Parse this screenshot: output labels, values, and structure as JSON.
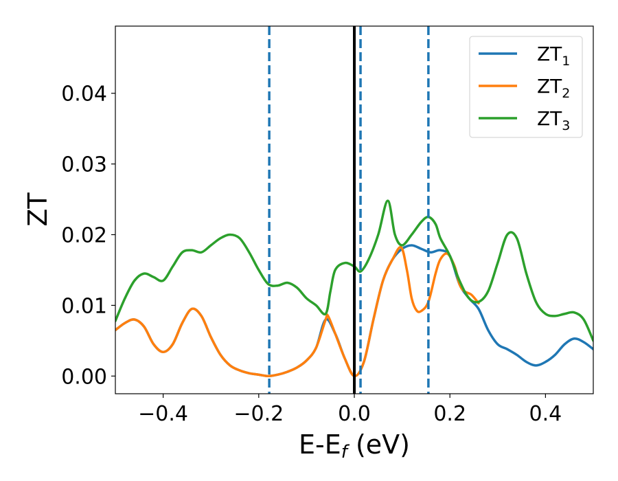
{
  "chart_data": {
    "type": "line",
    "xlabel": "E-E",
    "xlabel_sub": "f",
    "xlabel_unit": " (eV)",
    "ylabel": "ZT",
    "xlim": [
      -0.5,
      0.5
    ],
    "ylim": [
      -0.0025,
      0.0495
    ],
    "xticks": [
      -0.4,
      -0.2,
      0.0,
      0.2,
      0.4
    ],
    "xtick_labels": [
      "−0.4",
      "−0.2",
      "0.0",
      "0.2",
      "0.4"
    ],
    "yticks": [
      0.0,
      0.01,
      0.02,
      0.03,
      0.04
    ],
    "ytick_labels": [
      "0.00",
      "0.01",
      "0.02",
      "0.03",
      "0.04"
    ],
    "grid": false,
    "legend_position": "top-right",
    "vertical_lines": [
      {
        "x": 0.0,
        "color": "#000000",
        "style": "solid"
      },
      {
        "x": -0.178,
        "color": "#1f77b4",
        "style": "dashed"
      },
      {
        "x": 0.013,
        "color": "#1f77b4",
        "style": "dashed"
      },
      {
        "x": 0.155,
        "color": "#1f77b4",
        "style": "dashed"
      }
    ],
    "series": [
      {
        "name": "ZT",
        "sub": "1",
        "color": "#1f77b4",
        "x": [
          -0.5,
          -0.48,
          -0.46,
          -0.44,
          -0.42,
          -0.4,
          -0.38,
          -0.36,
          -0.34,
          -0.32,
          -0.3,
          -0.28,
          -0.26,
          -0.24,
          -0.22,
          -0.2,
          -0.18,
          -0.16,
          -0.14,
          -0.12,
          -0.1,
          -0.08,
          -0.06,
          -0.04,
          -0.02,
          0.0,
          0.02,
          0.04,
          0.06,
          0.08,
          0.1,
          0.12,
          0.14,
          0.16,
          0.18,
          0.2,
          0.22,
          0.24,
          0.26,
          0.28,
          0.3,
          0.32,
          0.34,
          0.36,
          0.38,
          0.4,
          0.42,
          0.44,
          0.46,
          0.48,
          0.5
        ],
        "y": [
          0.0065,
          0.0075,
          0.008,
          0.007,
          0.0045,
          0.0034,
          0.0045,
          0.0075,
          0.0095,
          0.0085,
          0.0055,
          0.003,
          0.0015,
          0.0008,
          0.0004,
          0.0002,
          0.0,
          0.0002,
          0.0006,
          0.0012,
          0.0022,
          0.004,
          0.008,
          0.006,
          0.0025,
          0.0,
          0.002,
          0.008,
          0.0135,
          0.0165,
          0.018,
          0.0185,
          0.018,
          0.0175,
          0.0178,
          0.017,
          0.013,
          0.011,
          0.0095,
          0.0065,
          0.0045,
          0.0038,
          0.003,
          0.002,
          0.0015,
          0.002,
          0.003,
          0.0045,
          0.0053,
          0.0048,
          0.0038
        ]
      },
      {
        "name": "ZT",
        "sub": "2",
        "color": "#ff7f0e",
        "x": [
          -0.5,
          -0.48,
          -0.46,
          -0.44,
          -0.42,
          -0.4,
          -0.38,
          -0.36,
          -0.34,
          -0.32,
          -0.3,
          -0.28,
          -0.26,
          -0.24,
          -0.22,
          -0.2,
          -0.18,
          -0.16,
          -0.14,
          -0.12,
          -0.1,
          -0.08,
          -0.06,
          -0.055,
          -0.04,
          -0.02,
          0.0,
          0.02,
          0.04,
          0.06,
          0.08,
          0.098,
          0.11,
          0.12,
          0.13,
          0.14,
          0.155,
          0.17,
          0.18,
          0.195,
          0.21,
          0.22,
          0.23,
          0.245,
          0.26
        ],
        "y": [
          0.0065,
          0.0075,
          0.008,
          0.007,
          0.0045,
          0.0034,
          0.0045,
          0.0075,
          0.0095,
          0.0085,
          0.0055,
          0.003,
          0.0015,
          0.0008,
          0.0004,
          0.0002,
          0.0,
          0.0002,
          0.0006,
          0.0012,
          0.0022,
          0.004,
          0.008,
          0.0085,
          0.006,
          0.0025,
          0.0,
          0.002,
          0.008,
          0.0135,
          0.0165,
          0.0182,
          0.015,
          0.011,
          0.0093,
          0.0092,
          0.0105,
          0.0145,
          0.0165,
          0.0173,
          0.0155,
          0.013,
          0.012,
          0.0115,
          0.0103
        ]
      },
      {
        "name": "ZT",
        "sub": "3",
        "color": "#2ca02c",
        "x": [
          -0.5,
          -0.48,
          -0.46,
          -0.44,
          -0.42,
          -0.4,
          -0.38,
          -0.36,
          -0.34,
          -0.32,
          -0.3,
          -0.28,
          -0.26,
          -0.24,
          -0.22,
          -0.2,
          -0.18,
          -0.16,
          -0.14,
          -0.12,
          -0.1,
          -0.08,
          -0.06,
          -0.05,
          -0.04,
          -0.02,
          0.0,
          0.013,
          0.03,
          0.05,
          0.07,
          0.085,
          0.1,
          0.12,
          0.14,
          0.155,
          0.17,
          0.18,
          0.2,
          0.22,
          0.24,
          0.26,
          0.28,
          0.3,
          0.32,
          0.34,
          0.36,
          0.38,
          0.4,
          0.42,
          0.44,
          0.46,
          0.48,
          0.5
        ],
        "y": [
          0.0078,
          0.011,
          0.0135,
          0.0145,
          0.014,
          0.0135,
          0.0155,
          0.0175,
          0.0178,
          0.0175,
          0.0185,
          0.0195,
          0.02,
          0.0195,
          0.0175,
          0.015,
          0.013,
          0.0128,
          0.0132,
          0.0125,
          0.011,
          0.01,
          0.0088,
          0.012,
          0.015,
          0.016,
          0.0155,
          0.0148,
          0.0165,
          0.02,
          0.0248,
          0.02,
          0.0185,
          0.02,
          0.0218,
          0.0225,
          0.0215,
          0.0195,
          0.017,
          0.0135,
          0.011,
          0.0105,
          0.012,
          0.016,
          0.02,
          0.0195,
          0.0145,
          0.0105,
          0.0088,
          0.0085,
          0.0088,
          0.009,
          0.008,
          0.005
        ]
      }
    ]
  }
}
